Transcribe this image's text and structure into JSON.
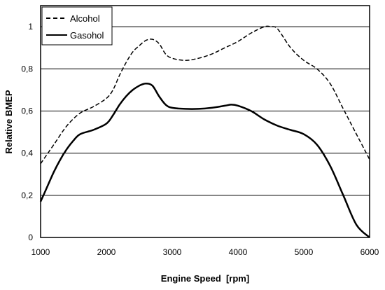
{
  "chart_data": {
    "type": "line",
    "title": "",
    "xlabel": "Engine Speed  [rpm]",
    "ylabel": "Relative BMEP",
    "xlim": [
      1000,
      6000
    ],
    "ylim": [
      0,
      1.1
    ],
    "xticks": [
      1000,
      2000,
      3000,
      4000,
      5000,
      6000
    ],
    "xtick_labels": [
      "1000",
      "2000",
      "3000",
      "4000",
      "5000",
      "6000"
    ],
    "yticks": [
      0,
      0.2,
      0.4,
      0.6,
      0.8,
      1
    ],
    "ytick_labels": [
      "0",
      "0,2",
      "0,4",
      "0,6",
      "0,8",
      "1"
    ],
    "grid": "horizontal",
    "legend_position": "top-left",
    "series": [
      {
        "name": "Alcohol",
        "line_style": "dashed",
        "color": "#000000",
        "x": [
          1000,
          1200,
          1400,
          1600,
          1800,
          2000,
          2100,
          2200,
          2300,
          2400,
          2500,
          2600,
          2700,
          2800,
          2900,
          3000,
          3200,
          3400,
          3600,
          3800,
          4000,
          4200,
          4400,
          4500,
          4600,
          4800,
          5000,
          5200,
          5400,
          5600,
          5800,
          6000
        ],
        "y": [
          0.35,
          0.44,
          0.53,
          0.59,
          0.62,
          0.66,
          0.7,
          0.77,
          0.83,
          0.88,
          0.91,
          0.935,
          0.94,
          0.92,
          0.87,
          0.85,
          0.84,
          0.85,
          0.87,
          0.9,
          0.93,
          0.97,
          1.0,
          1.0,
          0.99,
          0.9,
          0.84,
          0.8,
          0.73,
          0.61,
          0.49,
          0.37
        ]
      },
      {
        "name": "Gasohol",
        "line_style": "solid",
        "color": "#000000",
        "x": [
          1000,
          1100,
          1200,
          1300,
          1400,
          1500,
          1600,
          1800,
          2000,
          2100,
          2200,
          2300,
          2400,
          2500,
          2600,
          2700,
          2800,
          2900,
          3000,
          3200,
          3400,
          3600,
          3800,
          3900,
          4000,
          4200,
          4400,
          4600,
          4800,
          5000,
          5200,
          5400,
          5600,
          5800,
          6000
        ],
        "y": [
          0.17,
          0.24,
          0.31,
          0.37,
          0.42,
          0.46,
          0.49,
          0.51,
          0.54,
          0.58,
          0.63,
          0.67,
          0.7,
          0.72,
          0.73,
          0.72,
          0.67,
          0.63,
          0.615,
          0.61,
          0.61,
          0.615,
          0.625,
          0.63,
          0.625,
          0.6,
          0.56,
          0.53,
          0.51,
          0.49,
          0.44,
          0.34,
          0.2,
          0.06,
          -0.02
        ]
      }
    ]
  }
}
